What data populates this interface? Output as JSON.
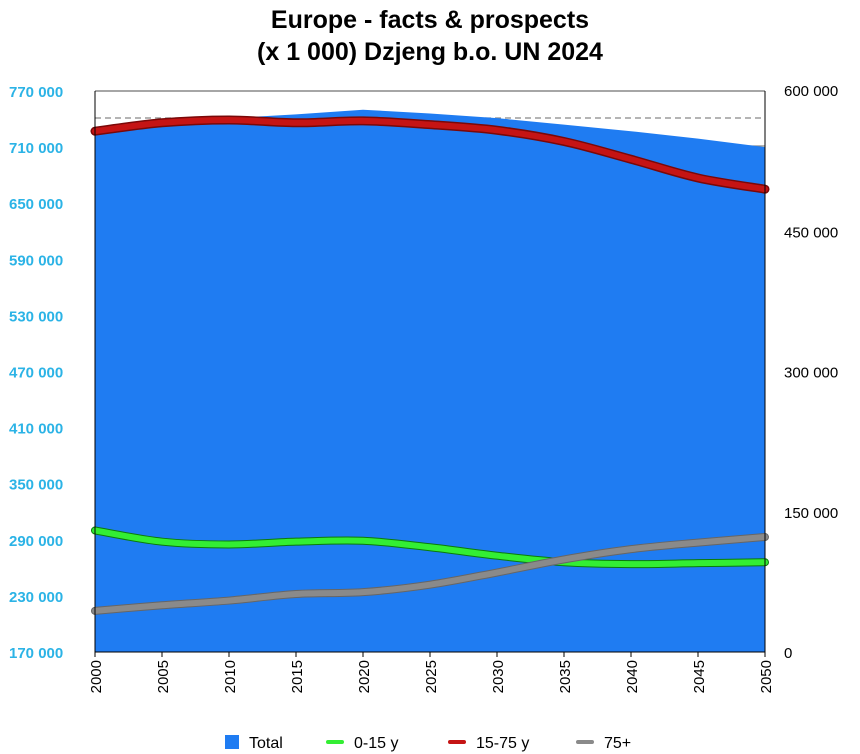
{
  "title_line1": "Europe - facts & prospects",
  "title_line2": "(x 1 000) Dzjeng b.o. UN 2024",
  "colors": {
    "total": "#1f7cf2",
    "young": "#33ee33",
    "working": "#c51414",
    "old": "#8a8a8a",
    "left_axis": "#2bb3e6"
  },
  "chart_data": {
    "type": "area",
    "title": "Europe - facts & prospects (x 1 000) Dzjeng b.o. UN 2024",
    "x": [
      2000,
      2005,
      2010,
      2015,
      2020,
      2025,
      2030,
      2035,
      2040,
      2045,
      2050
    ],
    "x_tick_labels": [
      "2000",
      "2005",
      "2010",
      "2015",
      "2020",
      "2025",
      "2030",
      "2035",
      "2040",
      "2045",
      "2050"
    ],
    "left_axis": {
      "range": [
        170000,
        770000
      ],
      "ticks": [
        170000,
        230000,
        290000,
        350000,
        410000,
        470000,
        530000,
        590000,
        650000,
        710000,
        770000
      ],
      "tick_labels": [
        "170 000",
        "230 000",
        "290 000",
        "350 000",
        "410 000",
        "470 000",
        "530 000",
        "590 000",
        "650 000",
        "710 000",
        "770 000"
      ]
    },
    "right_axis": {
      "range": [
        0,
        600000
      ],
      "ticks": [
        0,
        150000,
        300000,
        450000,
        600000
      ],
      "tick_labels": [
        "0",
        "150 000",
        "300 000",
        "450 000",
        "600 000"
      ]
    },
    "series": [
      {
        "name": "Total",
        "type": "area",
        "axis": "left",
        "values": [
          728000,
          737000,
          741000,
          745000,
          750000,
          746000,
          741000,
          734000,
          727000,
          719000,
          710000
        ]
      },
      {
        "name": "0-15 y",
        "type": "line",
        "axis": "right",
        "values": [
          130000,
          118000,
          115000,
          118000,
          119000,
          112000,
          103000,
          96000,
          94000,
          95000,
          96000
        ]
      },
      {
        "name": "15-75 y",
        "type": "line",
        "axis": "right",
        "values": [
          557000,
          566000,
          569000,
          566000,
          568000,
          564000,
          558000,
          546000,
          527000,
          507000,
          495000
        ]
      },
      {
        "name": "75+",
        "type": "line",
        "axis": "right",
        "values": [
          44000,
          50000,
          55000,
          62000,
          64000,
          72000,
          85000,
          99000,
          110000,
          117000,
          123000
        ]
      }
    ],
    "grid": "horizontal at top band",
    "legend": "bottom"
  }
}
